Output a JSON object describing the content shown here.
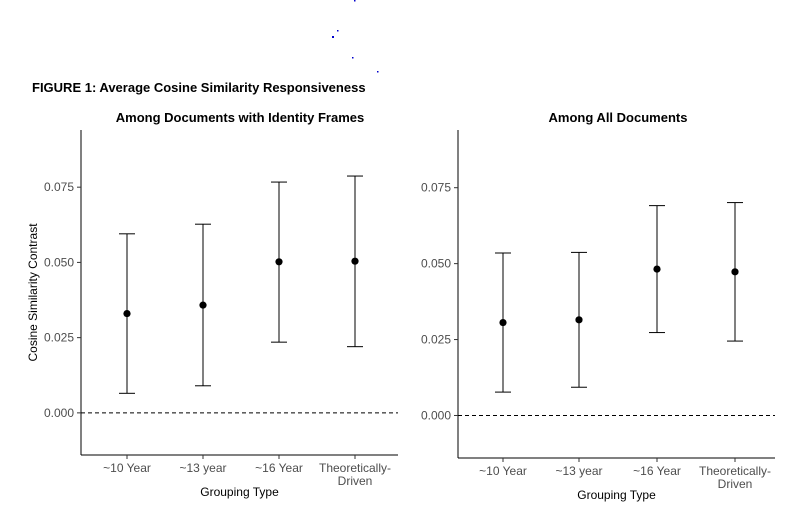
{
  "figure": {
    "title": "FIGURE 1: Average Cosine Similarity Responsiveness"
  },
  "chart_data": [
    {
      "type": "scatter",
      "title": "Among Documents with Identity Frames",
      "xlabel": "Grouping Type",
      "ylabel": "Cosine Similarity Contrast",
      "categories": [
        "~10 Year",
        "~13 year",
        "~16 Year",
        "Theoretically-Driven"
      ],
      "category_labels": [
        [
          "~10 Year"
        ],
        [
          "~13 year"
        ],
        [
          "~16 Year"
        ],
        [
          "Theoretically-",
          "Driven"
        ]
      ],
      "estimates": [
        0.033,
        0.0358,
        0.0502,
        0.0504
      ],
      "ci_lower": [
        0.0065,
        0.009,
        0.0235,
        0.022
      ],
      "ci_upper": [
        0.0595,
        0.0627,
        0.0767,
        0.0787
      ],
      "yticks": [
        0.0,
        0.025,
        0.05,
        0.075
      ],
      "ytick_labels": [
        "0.000",
        "0.025",
        "0.050",
        "0.075"
      ],
      "ylim": [
        -0.014,
        0.094
      ],
      "reference_line": 0,
      "grid": false,
      "error_bars": "confidence interval"
    },
    {
      "type": "scatter",
      "title": "Among All Documents",
      "xlabel": "Grouping Type",
      "ylabel": "",
      "categories": [
        "~10 Year",
        "~13 year",
        "~16 Year",
        "Theoretically-Driven"
      ],
      "category_labels": [
        [
          "~10 Year"
        ],
        [
          "~13 year"
        ],
        [
          "~16 Year"
        ],
        [
          "Theoretically-",
          "Driven"
        ]
      ],
      "estimates": [
        0.0306,
        0.0315,
        0.0482,
        0.0473
      ],
      "ci_lower": [
        0.0077,
        0.0093,
        0.0273,
        0.0245
      ],
      "ci_upper": [
        0.0535,
        0.0537,
        0.0691,
        0.0701
      ],
      "yticks": [
        0.0,
        0.025,
        0.05,
        0.075
      ],
      "ytick_labels": [
        "0.000",
        "0.025",
        "0.050",
        "0.075"
      ],
      "ylim": [
        -0.014,
        0.094
      ],
      "reference_line": 0,
      "grid": false,
      "error_bars": "confidence interval"
    }
  ]
}
